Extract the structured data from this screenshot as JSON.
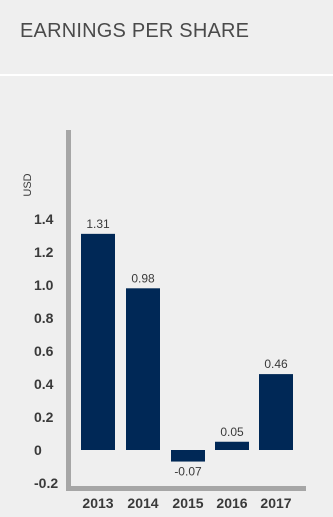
{
  "header": {
    "title": "EARNINGS PER SHARE"
  },
  "chart_data": {
    "type": "bar",
    "categories": [
      "2013",
      "2014",
      "2015",
      "2016",
      "2017"
    ],
    "values": [
      1.31,
      0.98,
      -0.07,
      0.05,
      0.46
    ],
    "data_labels": [
      "1.31",
      "0.98",
      "-0.07",
      "0.05",
      "0.46"
    ],
    "ylabel": "USD",
    "yticks": [
      "1.4",
      "1.2",
      "1.0",
      "0.8",
      "0.6",
      "0.4",
      "0.2",
      "0",
      "-0.2"
    ],
    "ytick_values": [
      1.4,
      1.2,
      1.0,
      0.8,
      0.6,
      0.4,
      0.2,
      0,
      -0.2
    ],
    "ylim": [
      -0.3,
      1.6
    ],
    "bar_color": "#002856",
    "axis_color": "#a6a6a6",
    "grid": false
  }
}
